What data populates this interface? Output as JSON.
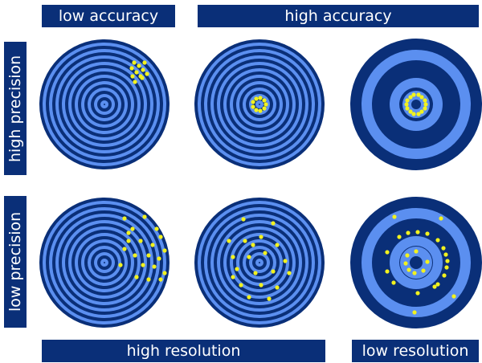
{
  "labels": {
    "low_accuracy": "low accuracy",
    "high_accuracy": "high accuracy",
    "high_precision": "high precision",
    "low_precision": "low precision",
    "high_resolution": "high resolution",
    "low_resolution": "low resolution"
  },
  "colors": {
    "dark": "#0a2f78",
    "light": "#5b8ff0",
    "dot": "#f2f21e"
  },
  "targets": [
    {
      "name": "high-precision-low-accuracy",
      "rings": "fine"
    },
    {
      "name": "high-precision-high-accuracy",
      "rings": "fine"
    },
    {
      "name": "high-precision-high-accuracy-low-resolution",
      "rings": "coarse"
    },
    {
      "name": "low-precision-low-accuracy",
      "rings": "fine"
    },
    {
      "name": "low-precision-high-accuracy",
      "rings": "fine"
    },
    {
      "name": "low-precision-high-accuracy-low-resolution",
      "rings": "coarse"
    }
  ]
}
